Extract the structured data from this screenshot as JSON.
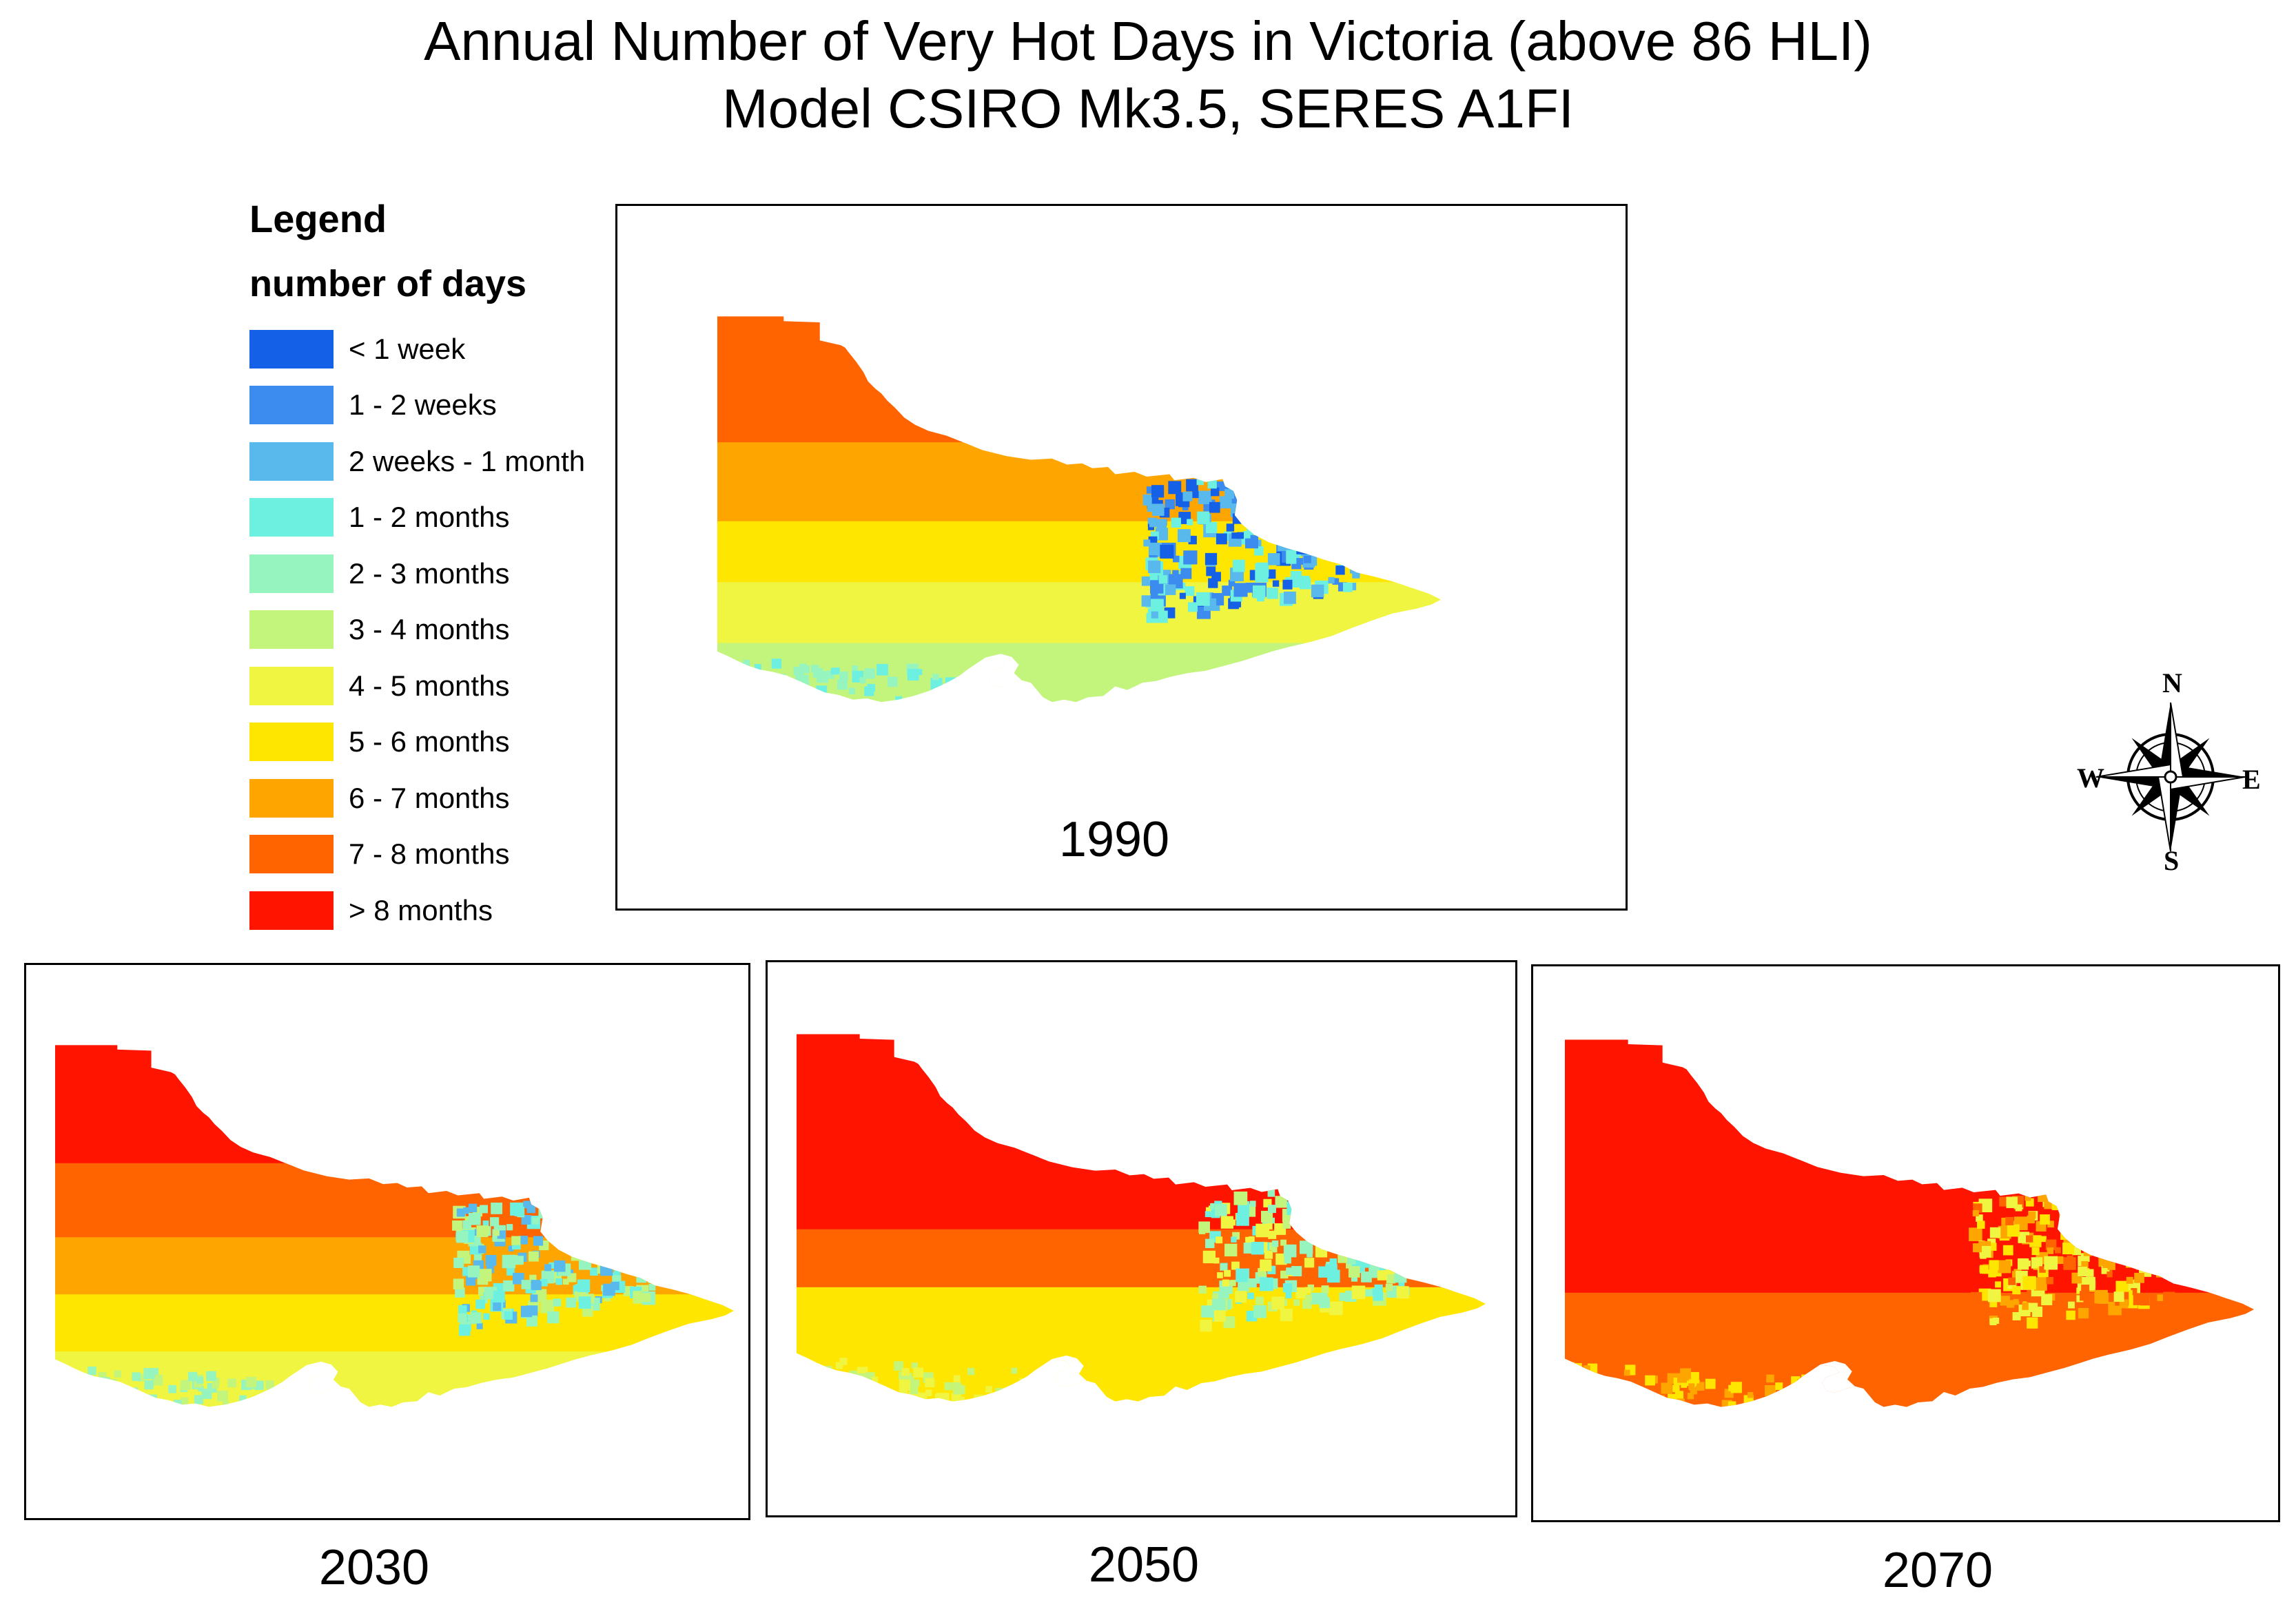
{
  "figure": {
    "title_line1": "Annual Number of Very Hot Days in Victoria (above 86 HLI)",
    "title_line2": "Model CSIRO  Mk3.5, SERES A1FI"
  },
  "legend": {
    "title": "Legend",
    "subtitle": "number of days",
    "items": [
      {
        "label": "< 1 week",
        "color": "#1460e6"
      },
      {
        "label": "1 - 2 weeks",
        "color": "#3c8cf0"
      },
      {
        "label": "2 weeks - 1 month",
        "color": "#5ab9ec"
      },
      {
        "label": "1 - 2 months",
        "color": "#6ef0e1"
      },
      {
        "label": "2 - 3 months",
        "color": "#96f5be"
      },
      {
        "label": "3 - 4 months",
        "color": "#c3f57d"
      },
      {
        "label": "4 - 5 months",
        "color": "#f0f541"
      },
      {
        "label": "5 - 6 months",
        "color": "#ffe600"
      },
      {
        "label": "6 - 7 months",
        "color": "#ffa500"
      },
      {
        "label": "7 - 8 months",
        "color": "#ff6400"
      },
      {
        "label": "> 8 months",
        "color": "#ff1400"
      }
    ]
  },
  "maps": [
    {
      "year": "1990",
      "classes": [
        9,
        8,
        7,
        6,
        5
      ],
      "highland_class": 0
    },
    {
      "year": "2030",
      "classes": [
        10,
        9,
        8,
        7,
        6
      ],
      "highland_class": 2
    },
    {
      "year": "2050",
      "classes": [
        10,
        10,
        9,
        7,
        7
      ],
      "highland_class": 3
    },
    {
      "year": "2070",
      "classes": [
        10,
        10,
        10,
        9,
        9
      ],
      "highland_class": 6
    }
  ],
  "compass": {
    "n": "N",
    "s": "S",
    "e": "E",
    "w": "W"
  }
}
